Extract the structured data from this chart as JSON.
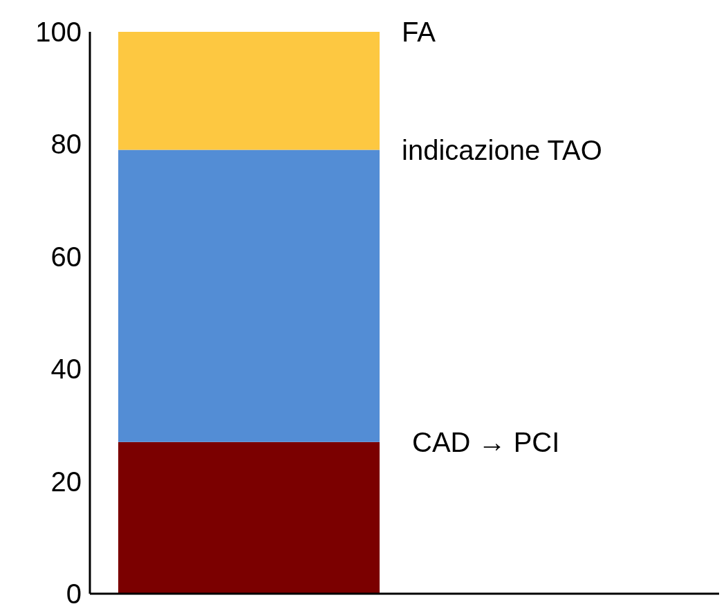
{
  "chart_data": {
    "type": "bar",
    "stacked": true,
    "categories": [
      null
    ],
    "ylim": [
      0,
      100
    ],
    "yticks": [
      0,
      20,
      40,
      60,
      80,
      100
    ],
    "grid": false,
    "series": [
      {
        "name": "CAD → PCI",
        "color": "#7b0000",
        "values": [
          27
        ]
      },
      {
        "name": "indicazione TAO",
        "color": "#538dd5",
        "values": [
          52
        ]
      },
      {
        "name": "FA",
        "color": "#fdc841",
        "values": [
          21
        ]
      }
    ]
  }
}
